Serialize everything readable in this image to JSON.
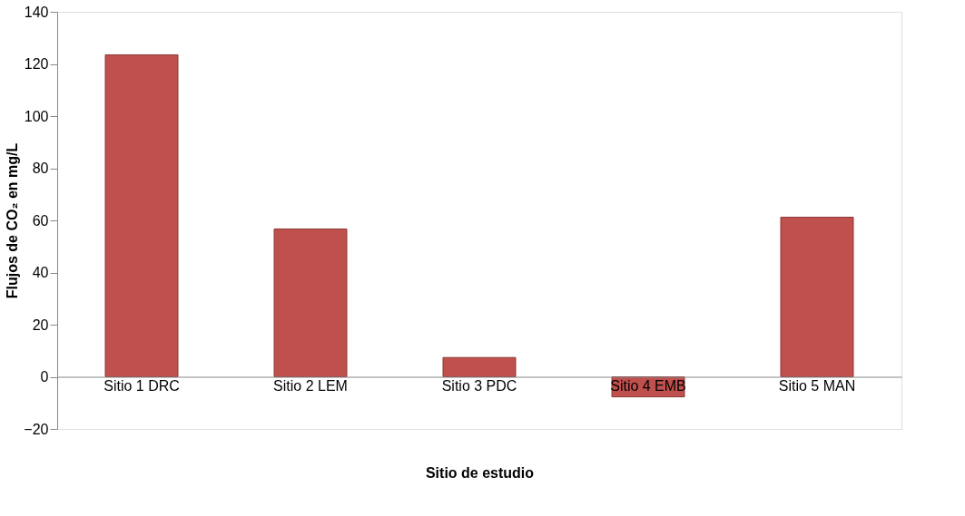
{
  "chart_data": {
    "type": "bar",
    "xlabel": "Sitio de estudio",
    "ylabel": "Flujos de CO₂ en mg/L",
    "categories": [
      "Sitio 1 DRC",
      "Sitio 2 LEM",
      "Sitio 3 PDC",
      "Sitio 4 EMB",
      "Sitio 5 MAN"
    ],
    "values": [
      123.5,
      56.7,
      7.4,
      -7.7,
      61.2
    ],
    "color": "#c0504d",
    "ylim": [
      -20,
      140
    ],
    "yticks": [
      -20,
      0,
      20,
      40,
      60,
      80,
      100,
      120,
      140
    ],
    "grid": false
  }
}
